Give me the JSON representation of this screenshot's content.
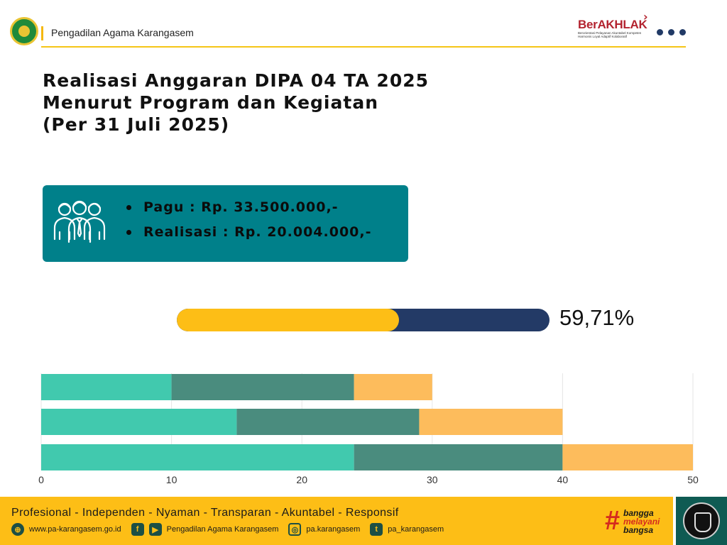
{
  "header": {
    "org_name": "Pengadilan Agama Karangasem",
    "badge_title": "BerAKHLAK",
    "badge_tagline": "Berorientasi Pelayanan Akuntabel Kompeten Harmonis Loyal Adaptif Kolaboratif"
  },
  "title_lines": [
    "Realisasi Anggaran DIPA 04 TA 2025",
    "Menurut Program dan Kegiatan",
    "(Per 31 Juli 2025)"
  ],
  "summary": {
    "pagu": "Pagu : Rp. 33.500.000,-",
    "realisasi": "Realisasi : Rp. 20.004.000,-",
    "icon": "people-group-icon"
  },
  "progress": {
    "label": "59,71%",
    "value": 0.5971,
    "fill_color": "#fdbe16",
    "track_color": "#233a66"
  },
  "chart_data": {
    "type": "bar",
    "orientation": "horizontal",
    "stacked": true,
    "categories": [
      "",
      "",
      ""
    ],
    "series": [
      {
        "color": "#41c9ae",
        "values": [
          10,
          15,
          24
        ]
      },
      {
        "color": "#4a8c7e",
        "values": [
          14,
          14,
          16
        ]
      },
      {
        "color": "#fdbc5c",
        "values": [
          6,
          11,
          10
        ]
      }
    ],
    "xlim": [
      0,
      50
    ],
    "x_ticks": [
      "0",
      "10",
      "20",
      "30",
      "40",
      "50"
    ],
    "grid": true,
    "title": "",
    "xlabel": "",
    "ylabel": ""
  },
  "footer": {
    "motto": "Profesional - Independen - Nyaman - Transparan - Akuntabel - Responsif",
    "website": "www.pa-karangasem.go.id",
    "facebook_youtube": "Pengadilan Agama Karangasem",
    "instagram": "pa.karangasem",
    "twitter": "pa_karangasem",
    "slogan": [
      "bangga",
      "melayani",
      "bangsa"
    ]
  }
}
